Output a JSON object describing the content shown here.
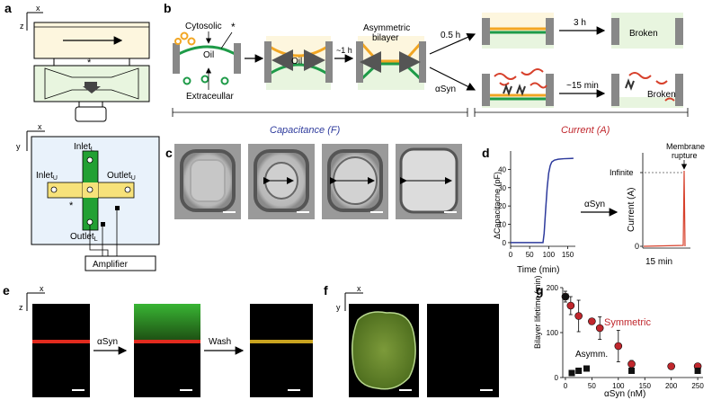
{
  "panels": {
    "a": "a",
    "b": "b",
    "c": "c",
    "d": "d",
    "e": "e",
    "f": "f",
    "g": "g"
  },
  "panel_a": {
    "axis_x": "x",
    "axis_z": "z",
    "axis_x2": "x",
    "axis_y": "y",
    "star": "*",
    "inlet_l": "Inlet",
    "inlet_l_sub": "L",
    "inlet_u": "Inlet",
    "inlet_u_sub": "U",
    "outlet_u": "Outlet",
    "outlet_u_sub": "U",
    "outlet_l": "Outlet",
    "outlet_l_sub": "L",
    "amplifier": "Amplifier"
  },
  "panel_b": {
    "cytosolic": "Cytosolic",
    "oil": "Oil",
    "oil2": "Oil",
    "extracellular": "Extraceullar",
    "star": "*",
    "time_1h": "~1 h",
    "asym_bilayer_1": "Asymmetric",
    "asym_bilayer_2": "bilayer",
    "time_05h": "0.5 h",
    "time_3h": "3 h",
    "broken_1": "Broken",
    "asyn": "αSyn",
    "time_15min": "~15 min",
    "broken_2": "Broken",
    "capacitance": "Capacitance (F)",
    "current": "Current (A)"
  },
  "panel_d": {
    "ylabel": "ΔCapacitacne (pF)",
    "xlabel": "Time (min)",
    "asyn": "αSyn",
    "ylabel2": "Current (A)",
    "infinite": "Infinite",
    "rupture_1": "Membrane",
    "rupture_2": "rupture",
    "zero": "0",
    "time_15min": "15 min"
  },
  "panel_e": {
    "axis_x": "x",
    "axis_z": "z",
    "asyn": "αSyn",
    "wash": "Wash"
  },
  "panel_f": {
    "axis_x": "x",
    "axis_y": "y"
  },
  "panel_g": {
    "symmetric": "Symmetric",
    "asymm": "Asymm."
  },
  "colors": {
    "cytosolic": "#f2a623",
    "extracellular": "#1e9b48",
    "chamber": "#fdf6de",
    "chamber2": "#e8f5df",
    "oil_arrow": "#666666",
    "blue": "#2d3a9c",
    "red": "#c0272d",
    "asyn_red": "#d7402b"
  },
  "chart_data": [
    {
      "type": "line",
      "title": "",
      "xlabel": "Time (min)",
      "ylabel": "ΔCapacitacne (pF)",
      "xlim": [
        0,
        170
      ],
      "ylim": [
        -2,
        50
      ],
      "xticks": [
        0,
        50,
        100,
        150
      ],
      "yticks": [
        0,
        10,
        20,
        30,
        40
      ],
      "series": [
        {
          "x": [
            0,
            85,
            88,
            92,
            96,
            100,
            104,
            108,
            115,
            125,
            140,
            165
          ],
          "y": [
            0,
            0,
            5,
            18,
            30,
            38,
            42,
            44,
            45,
            45.5,
            45.8,
            46
          ]
        }
      ]
    },
    {
      "type": "scatter",
      "title": "",
      "xlabel": "αSyn (nM)",
      "ylabel": "Bilayer lifetime (min)",
      "xlim": [
        -5,
        260
      ],
      "ylim": [
        0,
        200
      ],
      "xticks": [
        0,
        50,
        100,
        150,
        200,
        250
      ],
      "yticks": [
        0,
        100,
        200
      ],
      "series": [
        {
          "name": "Symmetric",
          "x": [
            0,
            10,
            25,
            50,
            65,
            100,
            125,
            200,
            250
          ],
          "y": [
            180,
            160,
            137,
            125,
            110,
            70,
            30,
            25,
            25
          ],
          "err": [
            12,
            20,
            35,
            0,
            25,
            35,
            8,
            0,
            5
          ]
        },
        {
          "name": "Asymm.",
          "x": [
            0,
            12,
            25,
            40,
            125,
            250
          ],
          "y": [
            180,
            10,
            15,
            20,
            15,
            15
          ]
        }
      ]
    }
  ]
}
